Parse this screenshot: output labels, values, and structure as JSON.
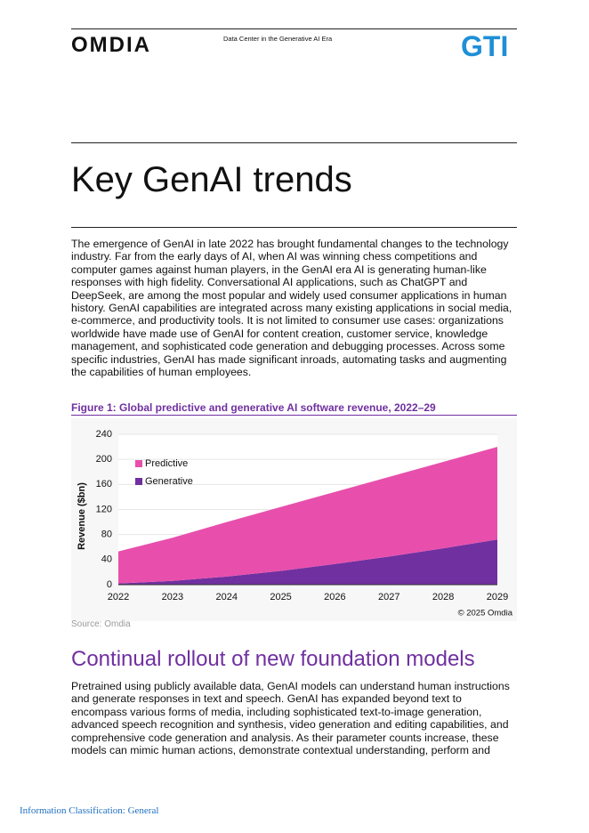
{
  "header": {
    "logo_left": "OMDIA",
    "doc_title": "Data Center in the Generative AI Era",
    "logo_right": "GTI"
  },
  "section_title": "Key GenAI trends",
  "intro": "The emergence of GenAI in late 2022 has brought fundamental changes to the technology industry. Far from the early days of AI, when AI was winning chess competitions and computer games against human players, in the GenAI era AI is generating human-like responses with high fidelity. Conversational AI applications, such as ChatGPT and DeepSeek, are among the most popular and widely used consumer applications in human history. GenAI capabilities are integrated across many existing applications in social media, e-commerce, and productivity tools. It is not limited to consumer use cases: organizations worldwide have made use of GenAI for content creation, customer service, knowledge management, and sophisticated code generation and debugging processes. Across some specific industries, GenAI has made significant inroads, automating tasks and augmenting the capabilities of human employees.",
  "figure": {
    "caption": "Figure 1: Global predictive and generative AI software revenue, 2022–29",
    "source": "Source: Omdia"
  },
  "chart_data": {
    "type": "stacked-area",
    "ylabel": "Revenue ($bn)",
    "credit": "© 2025 Omdia",
    "x": [
      2022,
      2023,
      2024,
      2025,
      2026,
      2027,
      2028,
      2029
    ],
    "xlim": [
      2022,
      2029
    ],
    "xticks": [
      2022,
      2023,
      2024,
      2025,
      2026,
      2027,
      2028,
      2029
    ],
    "ylim": [
      0,
      240
    ],
    "yticks": [
      0,
      40,
      80,
      120,
      160,
      200,
      240
    ],
    "grid": true,
    "legend": "upper left",
    "series": [
      {
        "name": "Predictive",
        "color": "#e84fac",
        "values": [
          51,
          69,
          87,
          102,
          115,
          127,
          138,
          148
        ]
      },
      {
        "name": "Generative",
        "color": "#7030a0",
        "values": [
          2,
          6,
          13,
          22,
          33,
          45,
          58,
          72
        ]
      }
    ]
  },
  "section2": {
    "heading": "Continual rollout of new foundation models",
    "body": "Pretrained using publicly available data, GenAI models can understand human instructions and generate responses in text and speech. GenAI has expanded beyond text to encompass various forms of media, including sophisticated text-to-image generation, advanced speech recognition and synthesis, video generation and editing capabilities, and comprehensive code generation and analysis. As their parameter counts increase, these models can mimic human actions, demonstrate contextual understanding, perform and"
  },
  "footer": "Information Classification: General"
}
